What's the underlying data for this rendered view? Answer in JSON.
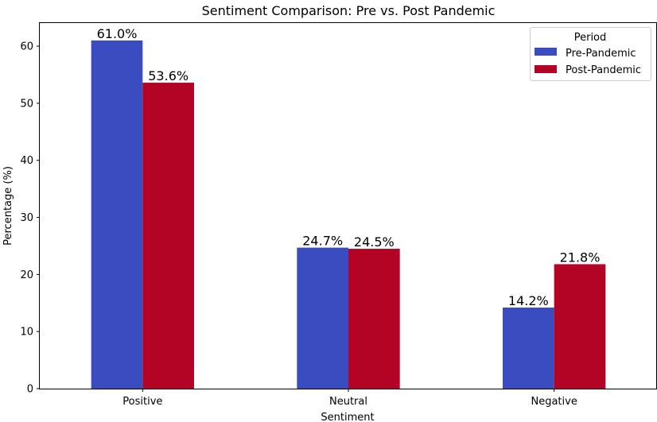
{
  "chart_data": {
    "type": "bar",
    "title": "Sentiment Comparison: Pre vs. Post Pandemic",
    "xlabel": "Sentiment",
    "ylabel": "Percentage (%)",
    "categories": [
      "Positive",
      "Neutral",
      "Negative"
    ],
    "series": [
      {
        "name": "Pre-Pandemic",
        "values": [
          61.0,
          24.7,
          14.2
        ],
        "color": "#3b4cc0",
        "labels": [
          "61.0%",
          "24.7%",
          "14.2%"
        ]
      },
      {
        "name": "Post-Pandemic",
        "values": [
          53.6,
          24.5,
          21.8
        ],
        "color": "#b40426",
        "labels": [
          "53.6%",
          "24.5%",
          "21.8%"
        ]
      }
    ],
    "ylim": [
      0,
      64.05
    ],
    "yticks": [
      0,
      10,
      20,
      30,
      40,
      50,
      60
    ],
    "grid": false,
    "legend": {
      "title": "Period",
      "position": "top-right"
    }
  }
}
